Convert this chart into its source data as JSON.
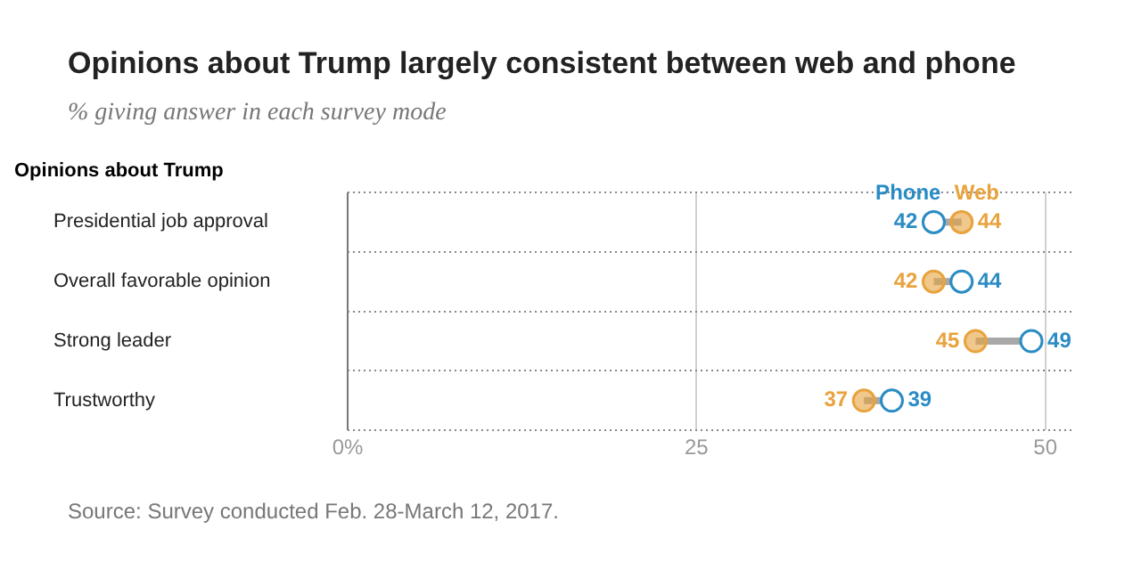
{
  "chart_data": {
    "type": "scatter",
    "title": "Opinions about Trump largely consistent between web and phone",
    "subtitle": "% giving answer in each survey mode",
    "ylabel": "Opinions about Trump",
    "categories": [
      "Presidential job approval",
      "Overall favorable opinion",
      "Strong leader",
      "Trustworthy"
    ],
    "series": [
      {
        "name": "Phone",
        "color": "#2a8cc4",
        "values": [
          42,
          44,
          49,
          39
        ]
      },
      {
        "name": "Web",
        "color": "#e8a33d",
        "values": [
          44,
          42,
          45,
          37
        ]
      }
    ],
    "orientation": "horizontal",
    "xlim": [
      0,
      52
    ],
    "xticks": [
      {
        "value": 0,
        "label": "0%"
      },
      25,
      50
    ],
    "grid": true,
    "marker": "circle",
    "data_labels": true,
    "annotations": [
      "Source: Survey conducted Feb. 28-March 12, 2017."
    ]
  }
}
